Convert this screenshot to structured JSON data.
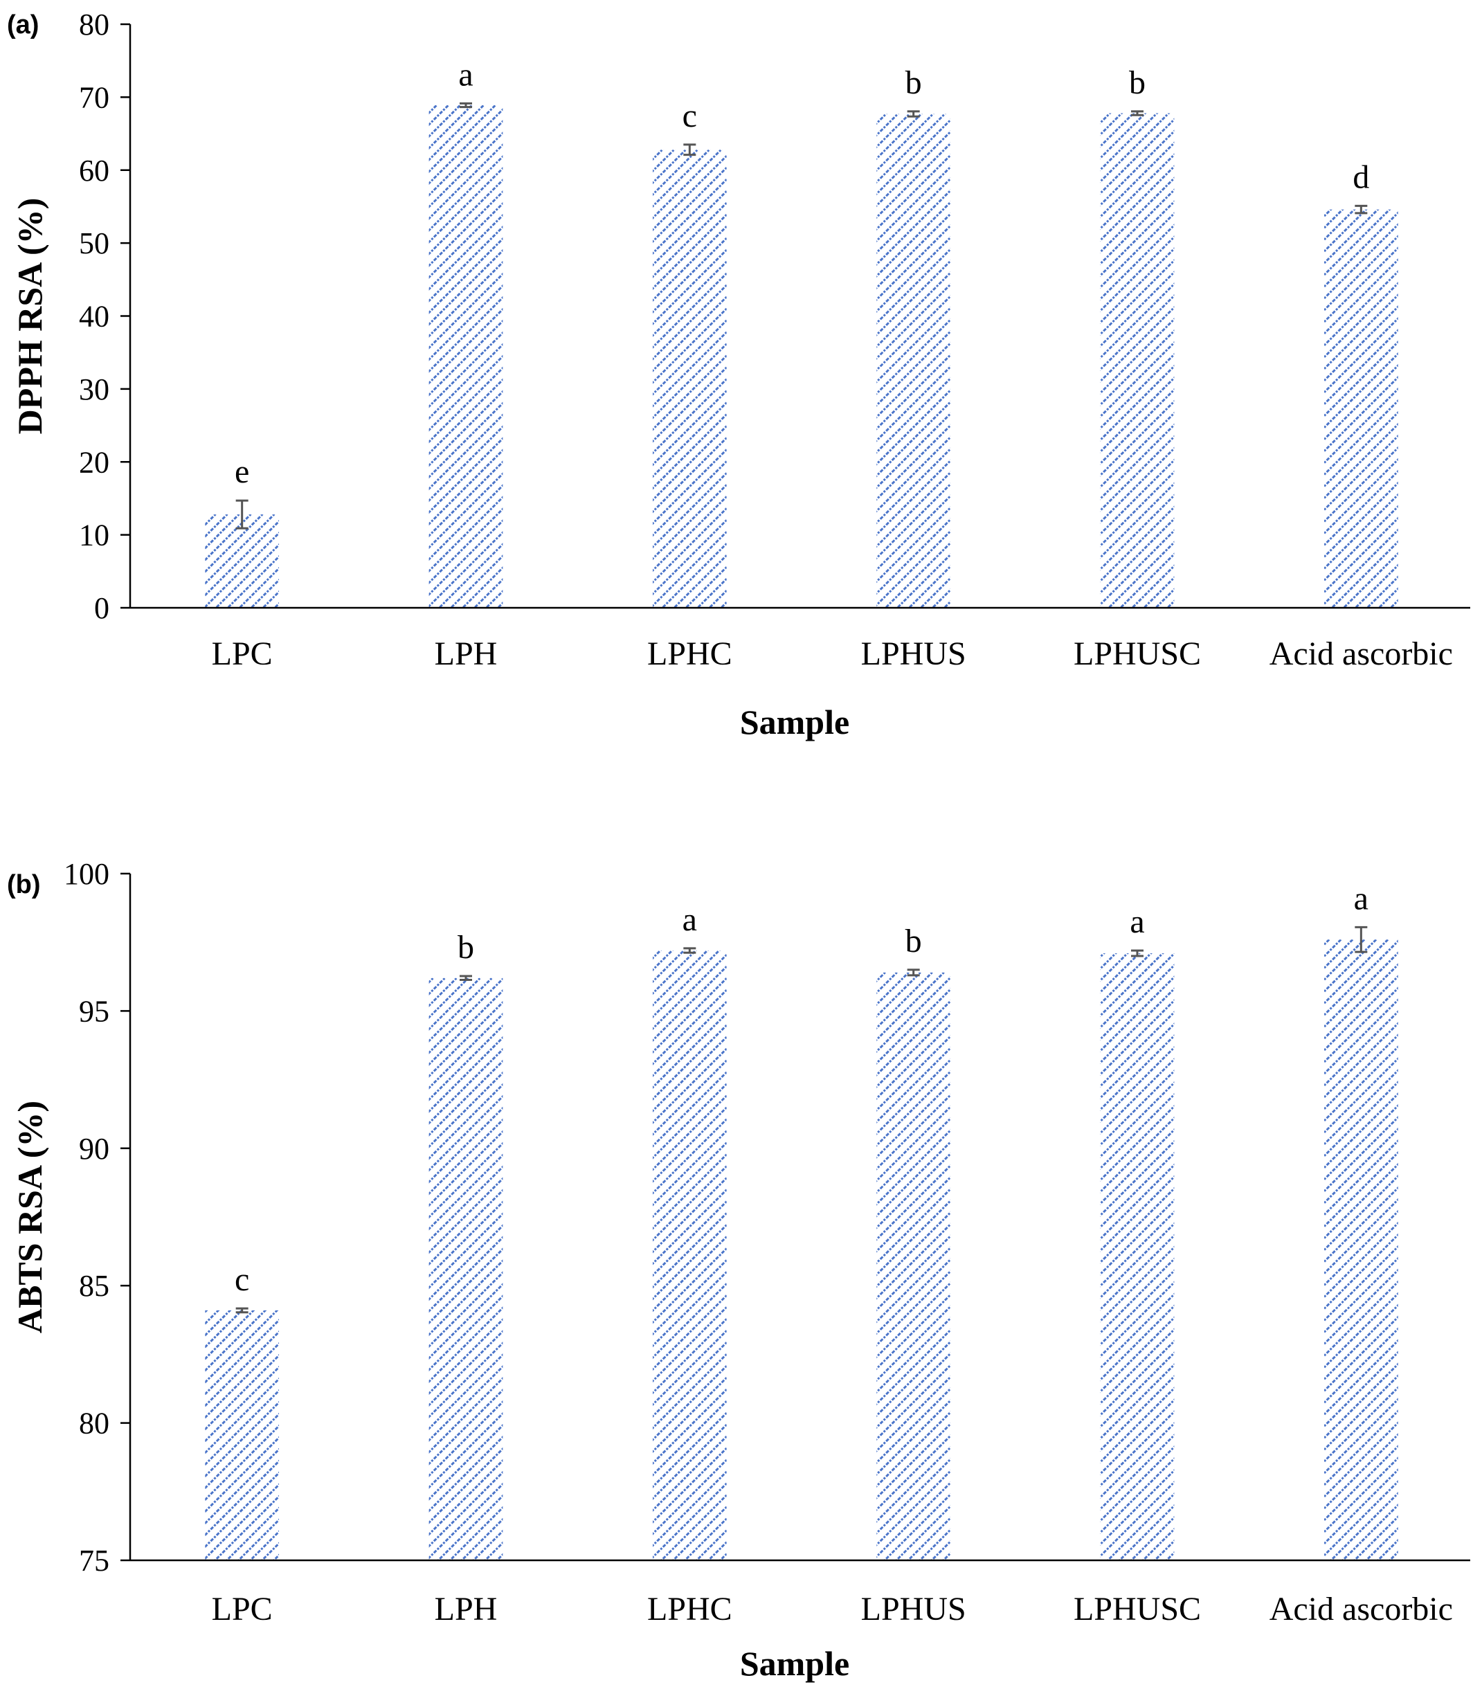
{
  "chart_data": [
    {
      "type": "bar",
      "panel": "(a)",
      "categories": [
        "LPC",
        "LPH",
        "LPHC",
        "LPHUS",
        "LPHUSC",
        "Acid ascorbic"
      ],
      "values": [
        12.8,
        68.9,
        62.8,
        67.7,
        67.8,
        54.6
      ],
      "errors": [
        1.9,
        0.25,
        0.7,
        0.35,
        0.25,
        0.5
      ],
      "significance": [
        "e",
        "a",
        "c",
        "b",
        "b",
        "d"
      ],
      "ylim": [
        0,
        80
      ],
      "yticks": [
        "0",
        "10",
        "20",
        "30",
        "40",
        "50",
        "60",
        "70",
        "80"
      ],
      "xlabel": "Sample",
      "ylabel": "DPPH RSA (%)",
      "grid": false,
      "bar_color": "#4a74c9"
    },
    {
      "type": "bar",
      "panel": "(b)",
      "categories": [
        "LPC",
        "LPH",
        "LPHC",
        "LPHUS",
        "LPHUSC",
        "Acid ascorbic"
      ],
      "values": [
        84.1,
        96.2,
        97.2,
        96.4,
        97.1,
        97.6
      ],
      "errors": [
        0.07,
        0.07,
        0.08,
        0.1,
        0.1,
        0.45
      ],
      "significance": [
        "c",
        "b",
        "a",
        "b",
        "a",
        "a"
      ],
      "ylim": [
        75,
        100
      ],
      "yticks": [
        "75",
        "80",
        "85",
        "90",
        "95",
        "100"
      ],
      "xlabel": "Sample",
      "ylabel": "ABTS RSA (%)",
      "grid": false,
      "bar_color": "#4a74c9"
    }
  ]
}
